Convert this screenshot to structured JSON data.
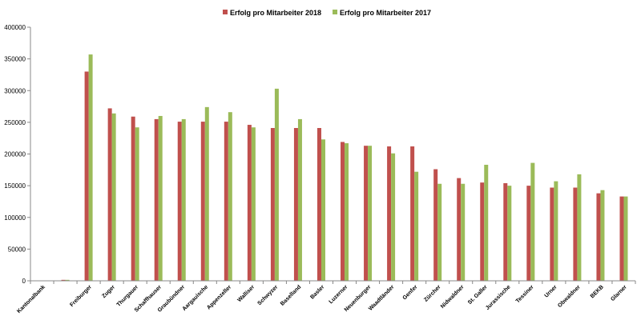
{
  "chart_data": {
    "type": "bar",
    "categories": [
      "Kantonalbank",
      null,
      "Freiburger",
      "Zuger",
      "Thurgauer",
      "Schaffhauser",
      "Graubündner",
      "Aargauische",
      "Appenzeller",
      "Walliser",
      "Schwyzer",
      "Baselland",
      "Basler",
      "Luzerner",
      "Neuenburger",
      "Waadtländer",
      "Genfer",
      "Zürcher",
      "Nidwaldner",
      "St. Galler",
      "Jurassische",
      "Tessiner",
      "Urner",
      "Obwaldner",
      "BEKB",
      "Glarner"
    ],
    "series": [
      {
        "name": "Erfolg pro Mitarbeiter 2018",
        "color": "#c0504d",
        "values": [
          0,
          1500,
          330000,
          272000,
          259000,
          255000,
          251000,
          251000,
          251000,
          246000,
          241000,
          241000,
          241000,
          219000,
          213000,
          212000,
          212000,
          176000,
          162000,
          155000,
          154000,
          150000,
          147000,
          147000,
          138000,
          133000
        ]
      },
      {
        "name": "Erfolg pro Mitarbeiter 2017",
        "color": "#9bbb59",
        "values": [
          0,
          1500,
          357000,
          264000,
          242000,
          260000,
          255000,
          274000,
          266000,
          242000,
          303000,
          255000,
          223000,
          217000,
          213000,
          201000,
          172000,
          153000,
          153000,
          183000,
          150000,
          186000,
          157000,
          168000,
          143000,
          133000
        ]
      }
    ],
    "ylim": [
      0,
      400000
    ],
    "yticks": [
      0,
      50000,
      100000,
      150000,
      200000,
      250000,
      300000,
      350000,
      400000
    ],
    "grid": false,
    "legend": "top"
  }
}
